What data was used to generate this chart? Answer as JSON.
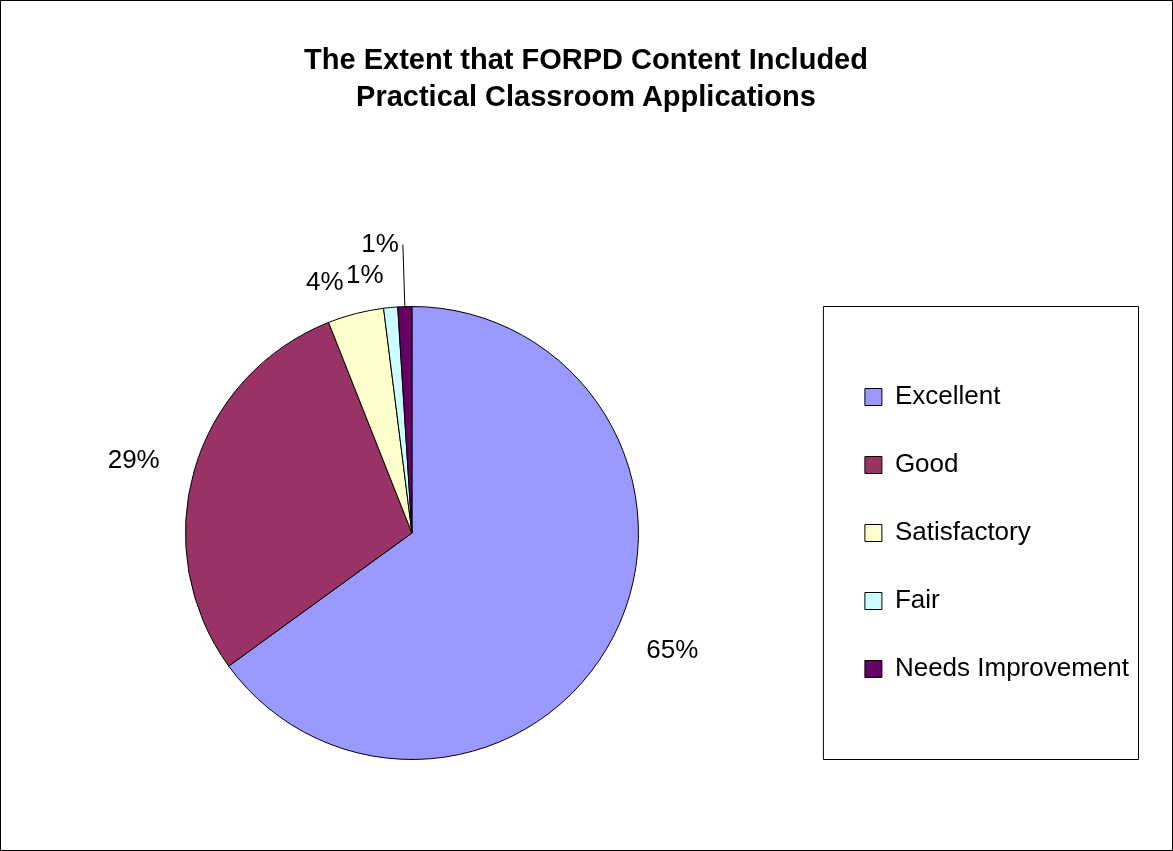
{
  "chart_data": {
    "type": "pie",
    "title": "The Extent that FORPD Content Included Practical Classroom Applications",
    "categories": [
      "Excellent",
      "Good",
      "Satisfactory",
      "Fair",
      "Needs Improvement"
    ],
    "values": [
      65,
      29,
      4,
      1,
      1
    ],
    "value_labels": [
      "65%",
      "29%",
      "4%",
      "1%",
      "1%"
    ],
    "colors": [
      "#9999ff",
      "#993366",
      "#ffffcc",
      "#ccffff",
      "#660066"
    ],
    "legend": "right"
  }
}
